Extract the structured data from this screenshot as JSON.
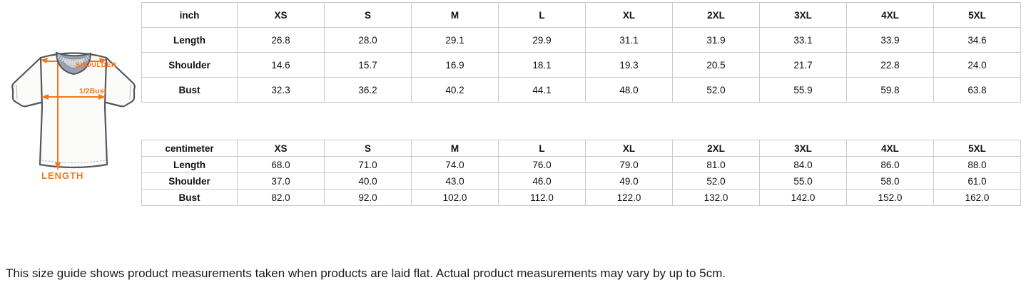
{
  "diagram": {
    "shoulder_label": "SHOULDER",
    "bust_label": "1/2Bust",
    "length_label": "LENGTH",
    "arrow_color": "#F4771E",
    "collar_color": "#99A2B0",
    "outline_color": "#53565C"
  },
  "tables": [
    {
      "unit_label": "inch",
      "columns": [
        "XS",
        "S",
        "M",
        "L",
        "XL",
        "2XL",
        "3XL",
        "4XL",
        "5XL"
      ],
      "rows": [
        {
          "label": "Length",
          "values": [
            "26.8",
            "28.0",
            "29.1",
            "29.9",
            "31.1",
            "31.9",
            "33.1",
            "33.9",
            "34.6"
          ]
        },
        {
          "label": "Shoulder",
          "values": [
            "14.6",
            "15.7",
            "16.9",
            "18.1",
            "19.3",
            "20.5",
            "21.7",
            "22.8",
            "24.0"
          ]
        },
        {
          "label": "Bust",
          "values": [
            "32.3",
            "36.2",
            "40.2",
            "44.1",
            "48.0",
            "52.0",
            "55.9",
            "59.8",
            "63.8"
          ]
        }
      ]
    },
    {
      "unit_label": "centimeter",
      "columns": [
        "XS",
        "S",
        "M",
        "L",
        "XL",
        "2XL",
        "3XL",
        "4XL",
        "5XL"
      ],
      "rows": [
        {
          "label": "Length",
          "values": [
            "68.0",
            "71.0",
            "74.0",
            "76.0",
            "79.0",
            "81.0",
            "84.0",
            "86.0",
            "88.0"
          ]
        },
        {
          "label": "Shoulder",
          "values": [
            "37.0",
            "40.0",
            "43.0",
            "46.0",
            "49.0",
            "52.0",
            "55.0",
            "58.0",
            "61.0"
          ]
        },
        {
          "label": "Bust",
          "values": [
            "82.0",
            "92.0",
            "102.0",
            "112.0",
            "122.0",
            "132.0",
            "142.0",
            "152.0",
            "162.0"
          ]
        }
      ]
    }
  ],
  "footer": {
    "note": "This size guide shows product measurements taken when products are laid flat. Actual product measurements may vary by up to 5cm."
  }
}
